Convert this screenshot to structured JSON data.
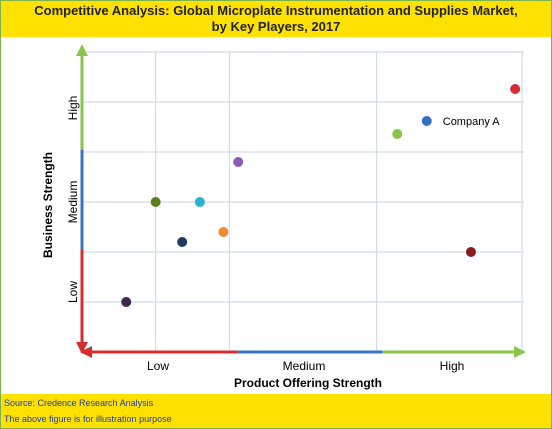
{
  "title": "Competitive Analysis: Global Microplate Instrumentation and Supplies Market, by Key Players, 2017",
  "source_note": "Source: Credence Research Analysis",
  "disclaimer": "The above figure is for illustration purpose",
  "colors": {
    "banner": "#ffe100",
    "low_axis": "#d42e2e",
    "medium_axis": "#3a74c4",
    "high_axis": "#8cc34a",
    "grid": "#c9d6e8"
  },
  "chart_data": {
    "type": "scatter",
    "title": "Competitive Analysis: Global Microplate Instrumentation and Supplies Market, by Key Players, 2017",
    "xlabel": "Product Offering Strength",
    "ylabel": "Business Strength",
    "x_tick_labels": [
      "Low",
      "Medium",
      "High"
    ],
    "y_tick_labels": [
      "Low",
      "Medium",
      "High"
    ],
    "xlim": [
      0,
      3
    ],
    "ylim": [
      0,
      3
    ],
    "grid": true,
    "points": [
      {
        "x": 2.94,
        "y": 2.63,
        "color": "#d62d35",
        "label": ""
      },
      {
        "x": 2.34,
        "y": 2.31,
        "color": "#3370c4",
        "label": "Company A"
      },
      {
        "x": 2.14,
        "y": 2.18,
        "color": "#8bc34a",
        "label": ""
      },
      {
        "x": 1.06,
        "y": 1.9,
        "color": "#8a5cb8",
        "label": ""
      },
      {
        "x": 0.5,
        "y": 1.5,
        "color": "#5a7f1c",
        "label": ""
      },
      {
        "x": 0.8,
        "y": 1.5,
        "color": "#27b2d0",
        "label": ""
      },
      {
        "x": 0.68,
        "y": 1.1,
        "color": "#1f3a5f",
        "label": ""
      },
      {
        "x": 0.96,
        "y": 1.2,
        "color": "#f08a2c",
        "label": ""
      },
      {
        "x": 2.64,
        "y": 1.0,
        "color": "#8c1b1b",
        "label": ""
      },
      {
        "x": 0.3,
        "y": 0.5,
        "color": "#3d2a52",
        "label": ""
      }
    ]
  }
}
